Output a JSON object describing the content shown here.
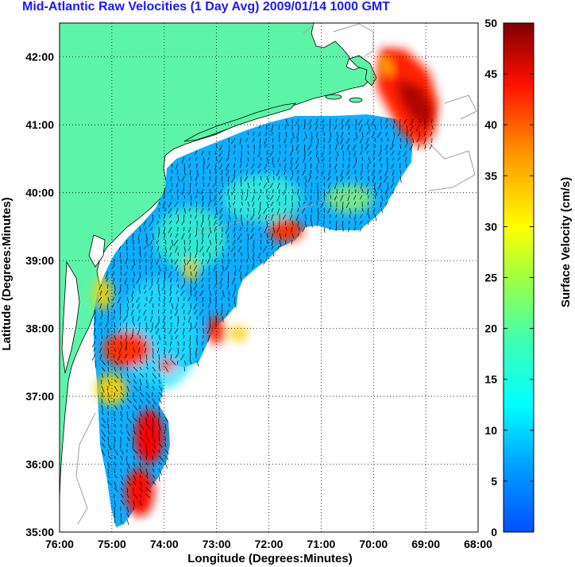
{
  "title": "Mid-Atlantic Raw Velocities (1 Day Avg) 2009/01/14 1000 GMT",
  "map": {
    "x_label": "Longitude (Degrees:Minutes)",
    "y_label": "Latitude (Degrees:Minutes)",
    "lon_ticks": [
      "76:00",
      "75:00",
      "74:00",
      "73:00",
      "72:00",
      "71:00",
      "70:00",
      "69:00",
      "68:00"
    ],
    "lat_ticks": [
      "42:00",
      "41:00",
      "40:00",
      "39:00",
      "38:00",
      "37:00",
      "36:00",
      "35:00"
    ],
    "lon_range": [
      -76,
      -68
    ],
    "lat_range": [
      35,
      42.5
    ],
    "grid": "dotted",
    "colors": {
      "land": "#5cf5a8",
      "water": "#ffffff",
      "coastline": "#000000",
      "bathymetry": "#a0a0a0",
      "vectors": "#000000"
    }
  },
  "colorbar": {
    "label": "Surface Velocity (cm/s)",
    "ticks": [
      "50",
      "45",
      "40",
      "35",
      "30",
      "25",
      "20",
      "15",
      "10",
      "5",
      "0"
    ],
    "range": [
      0,
      50
    ],
    "colormap": "jet"
  }
}
